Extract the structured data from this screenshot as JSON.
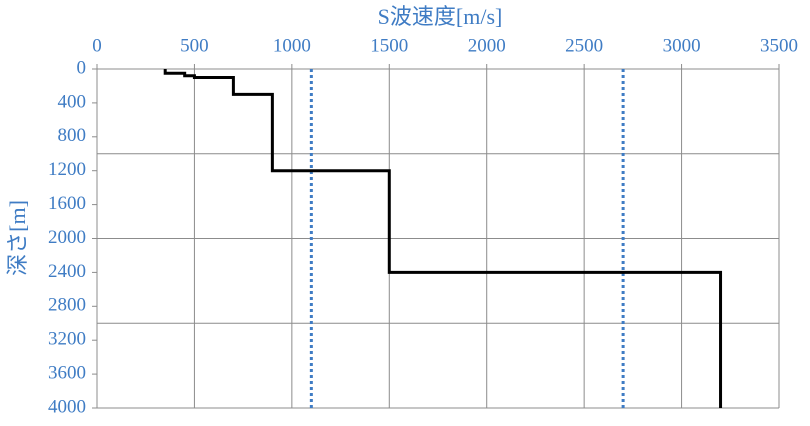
{
  "chart_data": {
    "type": "line",
    "title": "S波速度[m/s]",
    "y_label": "深さ[m]",
    "xlim": [
      0,
      3500
    ],
    "xticks": [
      0,
      500,
      1000,
      1500,
      2000,
      2500,
      3000,
      3500
    ],
    "ylim": [
      0,
      4000
    ],
    "yticks": [
      0,
      400,
      800,
      1200,
      1600,
      2000,
      2400,
      2800,
      3200,
      3600,
      4000
    ],
    "y_inverted": true,
    "x_axis_position": "top",
    "ygrid": [
      1000,
      2000,
      3000,
      4000
    ],
    "grid": true,
    "series": [
      {
        "color": "#000000",
        "x": [
          350,
          350,
          450,
          450,
          500,
          500,
          700,
          700,
          900,
          900,
          1500,
          1500,
          3200,
          3200
        ],
        "values": [
          0,
          50,
          50,
          80,
          80,
          100,
          100,
          300,
          300,
          1200,
          1200,
          2400,
          2400,
          4000
        ]
      }
    ],
    "reference_lines": [
      {
        "x": 1100,
        "color": "#3f7cc4"
      },
      {
        "x": 2700,
        "color": "#3f7cc4"
      }
    ]
  }
}
